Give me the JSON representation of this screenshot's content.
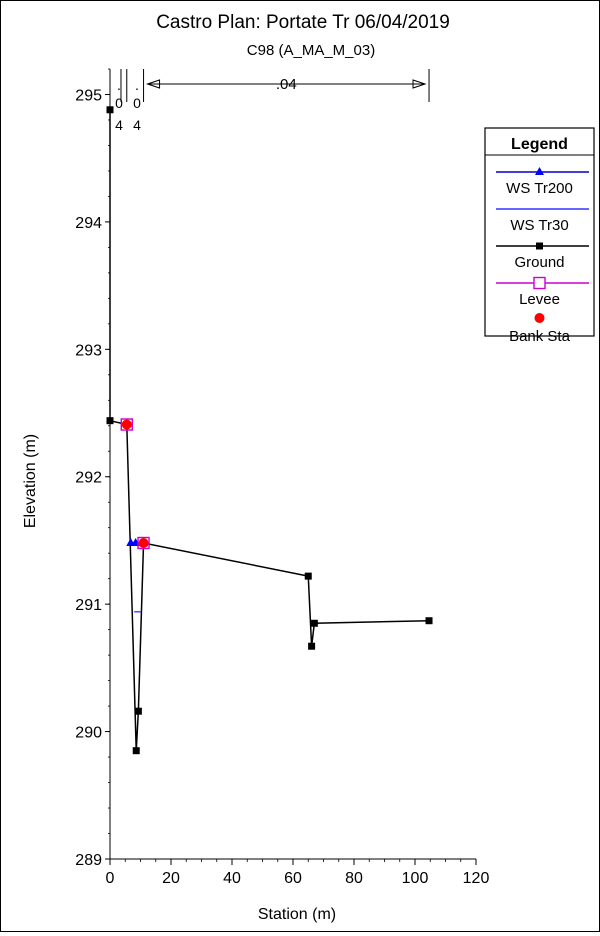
{
  "chart_data": {
    "type": "line",
    "title": "Castro      Plan: Portate Tr     06/04/2019",
    "subtitle": "C98 (A_MA_M_03)",
    "xlabel": "Station (m)",
    "ylabel": "Elevation (m)",
    "xlim": [
      0,
      120
    ],
    "ylim": [
      289,
      295.2
    ],
    "x_ticks": [
      "0",
      "20",
      "40",
      "60",
      "80",
      "100",
      "120"
    ],
    "y_ticks": [
      "289",
      "290",
      "291",
      "292",
      "293",
      "294",
      "295"
    ],
    "grid": false,
    "legend_position": "top-right",
    "legend_title": "Legend",
    "colors": {
      "ws_tr200": "#0000cc",
      "ws_tr30": "#3333ff",
      "ground": "#000000",
      "levee": "#cc00cc",
      "bank_sta": "#ff0000"
    },
    "series": [
      {
        "name": "WS Tr200",
        "x": [
          6.8,
          11.0
        ],
        "y": [
          291.48,
          291.48
        ]
      },
      {
        "name": "WS Tr30",
        "x": [
          7.9,
          10.1
        ],
        "y": [
          290.94,
          290.94
        ]
      },
      {
        "name": "Ground",
        "x": [
          0,
          0,
          5.5,
          8.6,
          9.3,
          11.0,
          65.0,
          66.1,
          67.0,
          104.6
        ],
        "y": [
          294.88,
          292.44,
          292.41,
          289.85,
          290.16,
          291.48,
          291.22,
          290.67,
          290.85,
          290.87
        ]
      },
      {
        "name": "Levee",
        "x": [
          5.5,
          11.0
        ],
        "y": [
          292.41,
          291.48
        ]
      },
      {
        "name": "Bank Sta",
        "x": [
          5.5,
          11.0
        ],
        "y": [
          292.41,
          291.48
        ]
      }
    ],
    "manning": {
      "left_values": [
        ".",
        "0",
        "4"
      ],
      "middle_values": [
        ".",
        "0",
        "4"
      ],
      "main_value": ".04"
    }
  }
}
